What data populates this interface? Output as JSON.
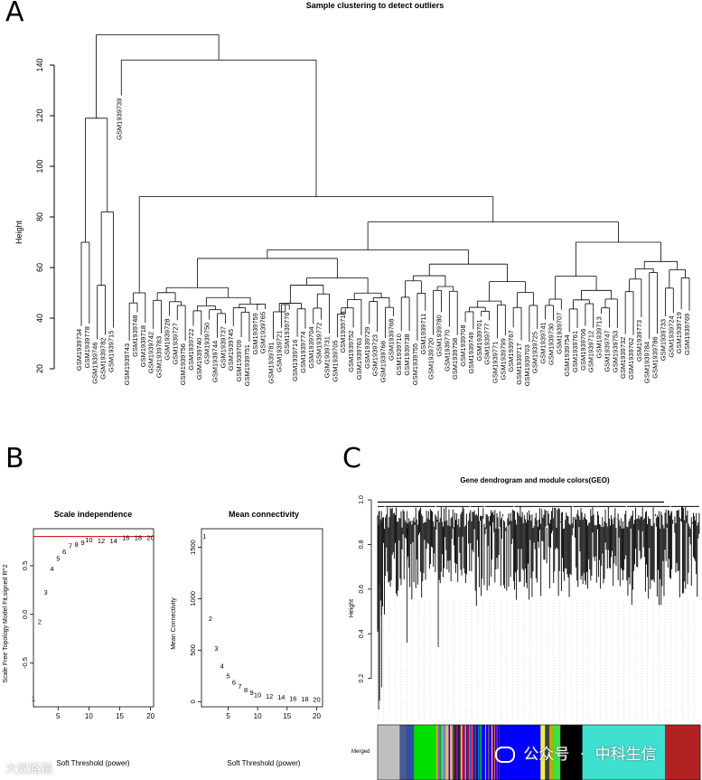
{
  "panels": {
    "a": {
      "letter": "A"
    },
    "b": {
      "letter": "B"
    },
    "c": {
      "letter": "C"
    }
  },
  "chart_data": [
    {
      "type": "dendrogram",
      "title": "Sample clustering to detect outliers",
      "ylabel": "Height",
      "xlabel": "",
      "ylim": [
        20,
        155
      ],
      "yticks": [
        20,
        40,
        60,
        80,
        100,
        120,
        140
      ],
      "top_merges": [
        {
          "height": 152,
          "description": "root"
        },
        {
          "height": 142,
          "description": "GSM1939739 cluster"
        },
        {
          "height": 119,
          "description": "left outlier group"
        },
        {
          "height": 88,
          "description": "main cluster"
        },
        {
          "height": 82,
          "description": "GSM1939715"
        },
        {
          "height": 78,
          "description": "main cluster split"
        },
        {
          "height": 70,
          "description": "GSM1939734 / GSM1939778"
        }
      ],
      "leaf_labels": [
        "GSM1939734",
        "GSM1939778",
        "GSM1939746",
        "GSM1939782",
        "GSM1939715",
        "GSM1939739",
        "GSM1939743",
        "GSM1939748",
        "GSM1939718",
        "GSM1939742",
        "GSM1939783",
        "GSM1939728",
        "GSM1939727",
        "GSM1939756",
        "GSM1939722",
        "GSM1939740",
        "GSM1939750",
        "GSM1939744",
        "GSM1939737",
        "GSM1939745",
        "GSM1939709",
        "GSM1939751",
        "GSM1939759",
        "GSM1939765",
        "GSM1939781",
        "GSM1939721",
        "GSM1939776",
        "GSM1939716",
        "GSM1939774",
        "GSM1939704",
        "GSM1939772",
        "GSM1939731",
        "GSM1939705",
        "GSM1939714",
        "GSM1939752",
        "GSM1939763",
        "GSM1939729",
        "GSM1939723",
        "GSM1939766",
        "GSM1939768",
        "GSM1939710",
        "GSM1939738",
        "GSM1939755",
        "GSM1939711",
        "GSM1939720",
        "GSM1939780",
        "GSM1939770",
        "GSM1939758",
        "GSM1939708",
        "GSM1939749",
        "GSM1939701",
        "GSM1939777",
        "GSM1939771",
        "GSM1939799",
        "GSM1939767",
        "GSM1939717",
        "GSM1939703",
        "GSM1939725",
        "GSM1939741",
        "GSM1939730",
        "GSM1939707",
        "GSM1939754",
        "GSM1939761",
        "GSM1939706",
        "GSM1939712",
        "GSM1939713",
        "GSM1939747",
        "GSM1939753",
        "GSM1939732",
        "GSM1939762",
        "GSM1939773",
        "GSM1939784",
        "GSM1939786",
        "GSM1939733",
        "GSM1939724",
        "GSM1939719",
        "GSM1939769"
      ]
    },
    {
      "type": "scatter",
      "title": "Scale independence",
      "xlabel": "Soft Threshold (power)",
      "ylabel": "Scale Free Topology Model Fit,signed R^2",
      "xlim": [
        1,
        20.5
      ],
      "ylim": [
        -0.95,
        0.88
      ],
      "xticks": [
        5,
        10,
        15,
        20
      ],
      "yticks": [
        -0.5,
        0.0,
        0.5
      ],
      "threshold_line": 0.8,
      "threshold_color": "#cc0000",
      "points": [
        {
          "x": 1,
          "y": -0.86
        },
        {
          "x": 2,
          "y": -0.07
        },
        {
          "x": 3,
          "y": 0.23
        },
        {
          "x": 4,
          "y": 0.47
        },
        {
          "x": 5,
          "y": 0.58
        },
        {
          "x": 6,
          "y": 0.65
        },
        {
          "x": 7,
          "y": 0.71
        },
        {
          "x": 8,
          "y": 0.72
        },
        {
          "x": 9,
          "y": 0.74
        },
        {
          "x": 10,
          "y": 0.77
        },
        {
          "x": 12,
          "y": 0.76
        },
        {
          "x": 14,
          "y": 0.76
        },
        {
          "x": 16,
          "y": 0.79
        },
        {
          "x": 18,
          "y": 0.79
        },
        {
          "x": 20,
          "y": 0.79
        }
      ]
    },
    {
      "type": "scatter",
      "title": "Mean connectivity",
      "xlabel": "Soft Threshold (power)",
      "ylabel": "Mean Connectivity",
      "xlim": [
        0.5,
        21
      ],
      "ylim": [
        -50,
        1680
      ],
      "xticks": [
        5,
        10,
        15,
        20
      ],
      "yticks": [
        0,
        500,
        1000,
        1500
      ],
      "points": [
        {
          "x": 1,
          "y": 1610
        },
        {
          "x": 2,
          "y": 810
        },
        {
          "x": 3,
          "y": 520
        },
        {
          "x": 4,
          "y": 350
        },
        {
          "x": 5,
          "y": 255
        },
        {
          "x": 6,
          "y": 190
        },
        {
          "x": 7,
          "y": 150
        },
        {
          "x": 8,
          "y": 115
        },
        {
          "x": 9,
          "y": 90
        },
        {
          "x": 10,
          "y": 70
        },
        {
          "x": 12,
          "y": 55
        },
        {
          "x": 14,
          "y": 45
        },
        {
          "x": 16,
          "y": 35
        },
        {
          "x": 18,
          "y": 30
        },
        {
          "x": 20,
          "y": 25
        }
      ]
    },
    {
      "type": "dendrogram",
      "title": "Gene dendrogram and module colors(GEO)",
      "ylabel": "Height",
      "ylim": [
        0,
        1.0
      ],
      "yticks": [
        0.2,
        0.4,
        0.6,
        0.8,
        1.0
      ],
      "color_bar_label": "Merged",
      "module_colors": [
        "#bfbfbf",
        "#4a5a8a",
        "#2f4fa0",
        "#00e000",
        "#f4a0c0",
        "#2a2a2a",
        "#b000b0",
        "#0000ff",
        "#f0f040",
        "#404040",
        "#b0b000",
        "#40e040",
        "#000000",
        "#40e0d0",
        "#b22222"
      ],
      "module_widths": [
        2,
        0.6,
        0.7,
        2.5,
        1.0,
        0.9,
        0.6,
        6.5,
        0.4,
        0.4,
        0.4,
        0.6,
        2.0,
        7.5,
        3.2
      ]
    }
  ],
  "watermark": {
    "left": "大奴路猿",
    "right_prefix": "公众号",
    "right_dot": "·",
    "right_name": "中科生信"
  }
}
